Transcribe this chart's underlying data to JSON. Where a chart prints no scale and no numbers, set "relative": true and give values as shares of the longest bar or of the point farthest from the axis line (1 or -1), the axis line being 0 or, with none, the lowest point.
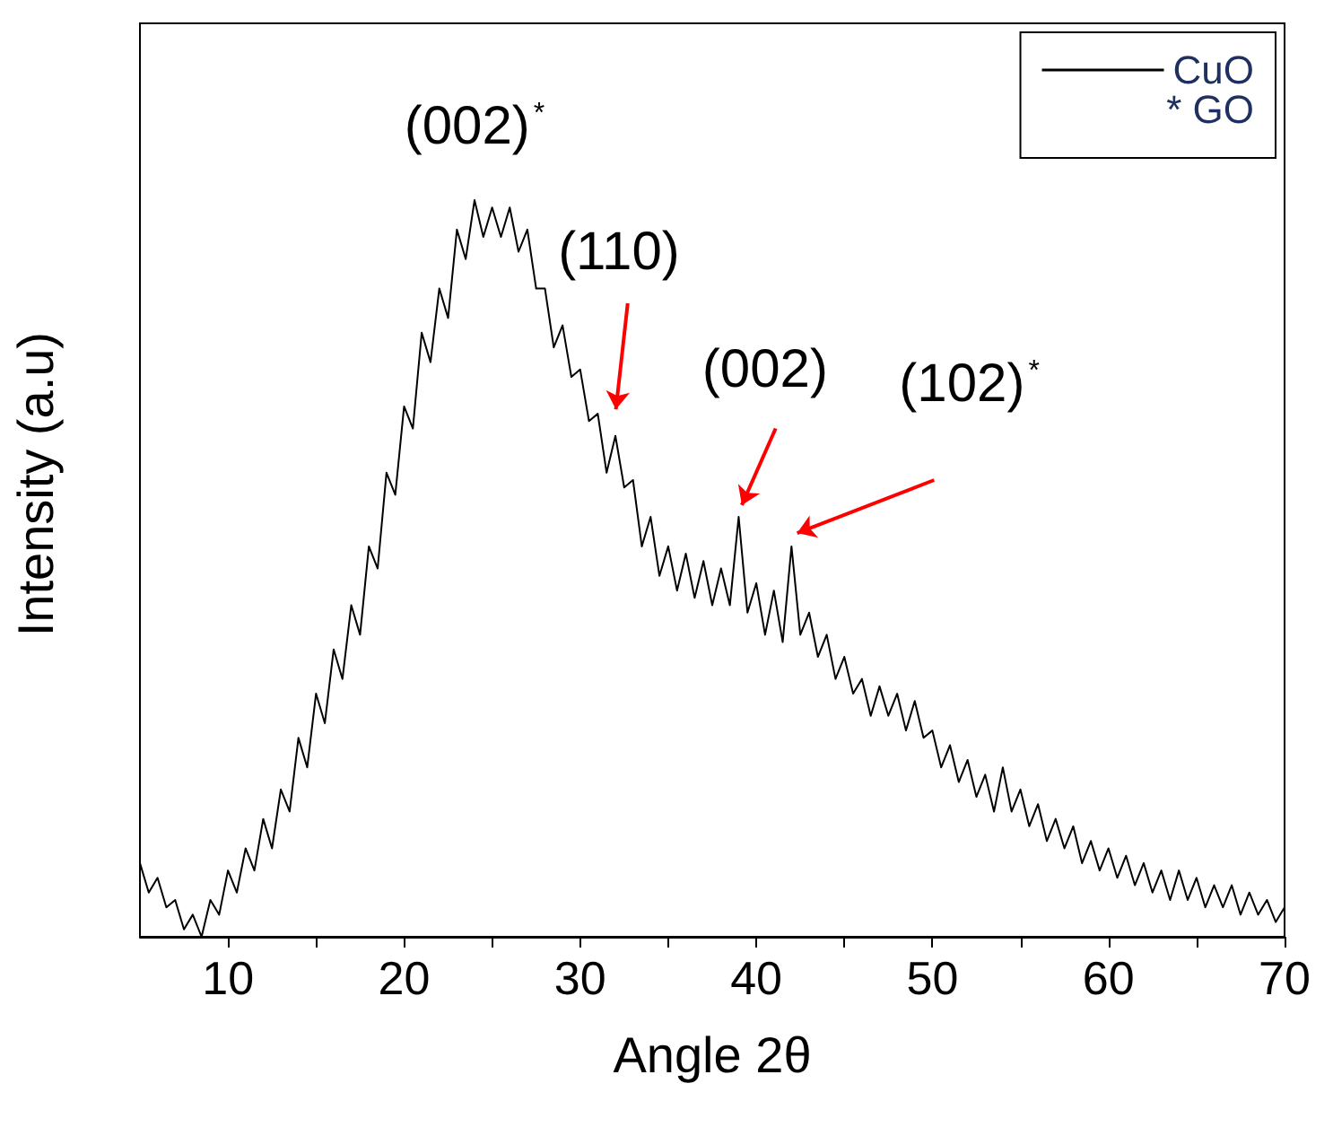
{
  "chart_data": {
    "type": "line",
    "relative": true,
    "xlabel": "Angle 2θ",
    "ylabel": "Intensity (a.u)",
    "xlim": [
      5,
      70
    ],
    "xticks": [
      10,
      {
        "value": 15,
        "label": null
      },
      20,
      {
        "value": 25,
        "label": null
      },
      30,
      {
        "value": 35,
        "label": null
      },
      40,
      {
        "value": 45,
        "label": null
      },
      50,
      {
        "value": 55,
        "label": null
      },
      60,
      {
        "value": 65,
        "label": null
      },
      70
    ],
    "legend": "top right",
    "grid": false,
    "marker": "none",
    "line_style": "solid",
    "annotations": [
      {
        "text": "(002)$^{*}$",
        "x": 24.5,
        "y": 1
      },
      {
        "text": "(110)",
        "x": 32,
        "y": 0.68
      },
      {
        "text": "(002)",
        "x": 39.1,
        "y": 0.56
      },
      {
        "text": "(102)$^{*}$",
        "x": 42,
        "y": 0.53
      },
      "* GO"
    ],
    "series": [
      {
        "name": "CuO",
        "color": "#000000",
        "x": [
          5,
          5.5,
          6,
          6.5,
          7,
          7.5,
          8,
          8.5,
          9,
          9.5,
          10,
          10.5,
          11,
          11.5,
          12,
          12.5,
          13,
          13.5,
          14,
          14.5,
          15,
          15.5,
          16,
          16.5,
          17,
          17.5,
          18,
          18.5,
          19,
          19.5,
          20,
          20.5,
          21,
          21.5,
          22,
          22.5,
          23,
          23.5,
          24,
          24.5,
          25,
          25.5,
          26,
          26.5,
          27,
          27.5,
          28,
          28.5,
          29,
          29.5,
          30,
          30.5,
          31,
          31.5,
          32,
          32.5,
          33,
          33.5,
          34,
          34.5,
          35,
          35.5,
          36,
          36.5,
          37,
          37.5,
          38,
          38.5,
          39,
          39.5,
          40,
          40.5,
          41,
          41.5,
          42,
          42.5,
          43,
          43.5,
          44,
          44.5,
          45,
          45.5,
          46,
          46.5,
          47,
          47.5,
          48,
          48.5,
          49,
          49.5,
          50,
          50.5,
          51,
          51.5,
          52,
          52.5,
          53,
          53.5,
          54,
          54.5,
          55,
          55.5,
          56,
          56.5,
          57,
          57.5,
          58,
          58.5,
          59,
          59.5,
          60,
          60.5,
          61,
          61.5,
          62,
          62.5,
          63,
          63.5,
          64,
          64.5,
          65,
          65.5,
          66,
          66.5,
          67,
          67.5,
          68,
          68.5,
          69,
          69.5,
          70
        ],
        "values": [
          0.1,
          0.06,
          0.08,
          0.04,
          0.05,
          0.01,
          0.03,
          0,
          0.05,
          0.03,
          0.09,
          0.06,
          0.12,
          0.09,
          0.16,
          0.12,
          0.2,
          0.17,
          0.27,
          0.23,
          0.33,
          0.29,
          0.39,
          0.35,
          0.45,
          0.41,
          0.53,
          0.5,
          0.63,
          0.6,
          0.72,
          0.69,
          0.82,
          0.78,
          0.88,
          0.84,
          0.96,
          0.92,
          1,
          0.95,
          0.99,
          0.95,
          0.99,
          0.93,
          0.96,
          0.88,
          0.88,
          0.8,
          0.83,
          0.76,
          0.77,
          0.7,
          0.71,
          0.63,
          0.68,
          0.61,
          0.62,
          0.53,
          0.57,
          0.49,
          0.53,
          0.47,
          0.52,
          0.46,
          0.51,
          0.45,
          0.5,
          0.45,
          0.57,
          0.44,
          0.48,
          0.41,
          0.47,
          0.4,
          0.53,
          0.41,
          0.44,
          0.38,
          0.41,
          0.35,
          0.38,
          0.33,
          0.35,
          0.3,
          0.34,
          0.3,
          0.33,
          0.28,
          0.32,
          0.27,
          0.28,
          0.23,
          0.26,
          0.21,
          0.24,
          0.19,
          0.22,
          0.17,
          0.23,
          0.17,
          0.2,
          0.15,
          0.18,
          0.13,
          0.16,
          0.12,
          0.15,
          0.1,
          0.13,
          0.09,
          0.12,
          0.08,
          0.11,
          0.07,
          0.1,
          0.06,
          0.09,
          0.05,
          0.09,
          0.05,
          0.08,
          0.04,
          0.07,
          0.04,
          0.07,
          0.03,
          0.06,
          0.03,
          0.05,
          0.02,
          0.04
        ]
      }
    ]
  }
}
